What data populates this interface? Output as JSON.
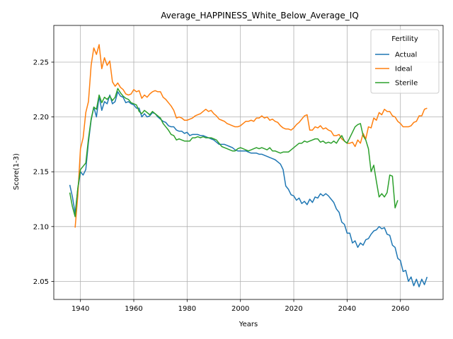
{
  "chart_data": {
    "type": "line",
    "title": "Average_HAPPINESS_White_Below_Average_IQ",
    "xlabel": "Years",
    "ylabel": "Score(1-3)",
    "xlim": [
      1930,
      2076
    ],
    "ylim": [
      2.0335,
      2.2835
    ],
    "xticks": [
      1940,
      1960,
      1980,
      2000,
      2020,
      2040,
      2060
    ],
    "yticks": [
      2.05,
      2.1,
      2.15,
      2.2,
      2.25
    ],
    "ytick_labels": [
      "2.05",
      "2.10",
      "2.15",
      "2.20",
      "2.25"
    ],
    "grid": true,
    "legend": {
      "title": "Fertility",
      "placement": "top-right"
    },
    "series": [
      {
        "name": "Actual",
        "color": "#1f77b4",
        "x": [
          1936,
          1937,
          1938,
          1939,
          1940,
          1941,
          1942,
          1943,
          1944,
          1945,
          1946,
          1947,
          1948,
          1949,
          1950,
          1951,
          1952,
          1953,
          1954,
          1955,
          1956,
          1957,
          1958,
          1959,
          1960,
          1961,
          1962,
          1963,
          1964,
          1965,
          1966,
          1967,
          1968,
          1969,
          1970,
          1971,
          1972,
          1973,
          1974,
          1975,
          1976,
          1977,
          1978,
          1979,
          1980,
          1981,
          1982,
          1983,
          1984,
          1985,
          1986,
          1987,
          1988,
          1989,
          1990,
          1991,
          1992,
          1993,
          1994,
          1995,
          1996,
          1997,
          1998,
          1999,
          2000,
          2001,
          2002,
          2003,
          2004,
          2005,
          2006,
          2007,
          2008,
          2009,
          2010,
          2011,
          2012,
          2013,
          2014,
          2015,
          2016,
          2017,
          2018,
          2019,
          2020,
          2021,
          2022,
          2023,
          2024,
          2025,
          2026,
          2027,
          2028,
          2029,
          2030,
          2031,
          2032,
          2033,
          2034,
          2035,
          2036,
          2037,
          2038,
          2039,
          2040,
          2041,
          2042,
          2043,
          2044,
          2045,
          2046,
          2047,
          2048,
          2049,
          2050,
          2051,
          2052,
          2053,
          2054,
          2055,
          2056,
          2057,
          2058,
          2059,
          2060,
          2061,
          2062,
          2063,
          2064,
          2065,
          2066,
          2067,
          2068,
          2069,
          2070
        ],
        "values": [
          2.138,
          2.127,
          2.112,
          2.134,
          2.15,
          2.147,
          2.152,
          2.177,
          2.197,
          2.209,
          2.2,
          2.219,
          2.206,
          2.214,
          2.212,
          2.22,
          2.212,
          2.214,
          2.223,
          2.219,
          2.218,
          2.213,
          2.214,
          2.212,
          2.211,
          2.208,
          2.208,
          2.2,
          2.203,
          2.2,
          2.201,
          2.204,
          2.203,
          2.2,
          2.198,
          2.196,
          2.195,
          2.192,
          2.191,
          2.191,
          2.188,
          2.187,
          2.187,
          2.185,
          2.186,
          2.183,
          2.184,
          2.184,
          2.184,
          2.183,
          2.183,
          2.182,
          2.181,
          2.18,
          2.179,
          2.177,
          2.175,
          2.175,
          2.175,
          2.174,
          2.173,
          2.172,
          2.17,
          2.169,
          2.169,
          2.169,
          2.169,
          2.168,
          2.167,
          2.167,
          2.167,
          2.166,
          2.166,
          2.165,
          2.164,
          2.163,
          2.162,
          2.161,
          2.159,
          2.157,
          2.152,
          2.137,
          2.134,
          2.129,
          2.128,
          2.124,
          2.126,
          2.121,
          2.123,
          2.12,
          2.125,
          2.122,
          2.127,
          2.126,
          2.13,
          2.128,
          2.13,
          2.128,
          2.125,
          2.122,
          2.116,
          2.113,
          2.104,
          2.102,
          2.094,
          2.094,
          2.085,
          2.087,
          2.081,
          2.085,
          2.083,
          2.088,
          2.089,
          2.093,
          2.096,
          2.097,
          2.1,
          2.098,
          2.099,
          2.093,
          2.092,
          2.083,
          2.081,
          2.071,
          2.069,
          2.059,
          2.06,
          2.05,
          2.054,
          2.046,
          2.052,
          2.045,
          2.052,
          2.047,
          2.054
        ]
      },
      {
        "name": "Ideal",
        "color": "#ff7f0e",
        "x": [
          1938,
          1939,
          1940,
          1941,
          1942,
          1943,
          1944,
          1945,
          1946,
          1947,
          1948,
          1949,
          1950,
          1951,
          1952,
          1953,
          1954,
          1955,
          1956,
          1957,
          1958,
          1959,
          1960,
          1961,
          1962,
          1963,
          1964,
          1965,
          1966,
          1967,
          1968,
          1969,
          1970,
          1971,
          1972,
          1973,
          1974,
          1975,
          1976,
          1977,
          1978,
          1979,
          1980,
          1981,
          1982,
          1983,
          1984,
          1985,
          1986,
          1987,
          1988,
          1989,
          1990,
          1991,
          1992,
          1993,
          1994,
          1995,
          1996,
          1997,
          1998,
          1999,
          2000,
          2001,
          2002,
          2003,
          2004,
          2005,
          2006,
          2007,
          2008,
          2009,
          2010,
          2011,
          2012,
          2013,
          2014,
          2015,
          2016,
          2017,
          2018,
          2019,
          2020,
          2021,
          2022,
          2023,
          2024,
          2025,
          2026,
          2027,
          2028,
          2029,
          2030,
          2031,
          2032,
          2033,
          2034,
          2035,
          2036,
          2037,
          2038,
          2039,
          2040,
          2041,
          2042,
          2043,
          2044,
          2045,
          2046,
          2047,
          2048,
          2049,
          2050,
          2051,
          2052,
          2053,
          2054,
          2055,
          2056,
          2057,
          2058,
          2059,
          2060,
          2061,
          2062,
          2063,
          2064,
          2065,
          2066,
          2067,
          2068,
          2069,
          2070
        ],
        "values": [
          2.099,
          2.128,
          2.171,
          2.181,
          2.204,
          2.214,
          2.247,
          2.263,
          2.257,
          2.266,
          2.244,
          2.254,
          2.247,
          2.251,
          2.232,
          2.228,
          2.231,
          2.227,
          2.225,
          2.221,
          2.22,
          2.221,
          2.225,
          2.223,
          2.224,
          2.217,
          2.22,
          2.218,
          2.221,
          2.223,
          2.224,
          2.223,
          2.223,
          2.218,
          2.216,
          2.213,
          2.21,
          2.206,
          2.199,
          2.2,
          2.199,
          2.197,
          2.197,
          2.198,
          2.199,
          2.201,
          2.202,
          2.203,
          2.205,
          2.207,
          2.205,
          2.206,
          2.203,
          2.201,
          2.198,
          2.197,
          2.196,
          2.194,
          2.193,
          2.192,
          2.191,
          2.191,
          2.192,
          2.194,
          2.196,
          2.196,
          2.197,
          2.196,
          2.199,
          2.199,
          2.201,
          2.199,
          2.2,
          2.197,
          2.198,
          2.196,
          2.195,
          2.192,
          2.19,
          2.189,
          2.189,
          2.188,
          2.19,
          2.193,
          2.195,
          2.198,
          2.201,
          2.202,
          2.188,
          2.188,
          2.191,
          2.19,
          2.192,
          2.189,
          2.19,
          2.188,
          2.187,
          2.183,
          2.183,
          2.184,
          2.18,
          2.178,
          2.176,
          2.176,
          2.177,
          2.173,
          2.179,
          2.176,
          2.185,
          2.18,
          2.191,
          2.19,
          2.199,
          2.197,
          2.204,
          2.202,
          2.207,
          2.205,
          2.205,
          2.201,
          2.2,
          2.196,
          2.194,
          2.191,
          2.191,
          2.191,
          2.192,
          2.195,
          2.196,
          2.201,
          2.201,
          2.207,
          2.208
        ]
      },
      {
        "name": "Sterile",
        "color": "#2ca02c",
        "x": [
          1936,
          1937,
          1938,
          1939,
          1940,
          1941,
          1942,
          1943,
          1944,
          1945,
          1946,
          1947,
          1948,
          1949,
          1950,
          1951,
          1952,
          1953,
          1954,
          1955,
          1956,
          1957,
          1958,
          1959,
          1960,
          1961,
          1962,
          1963,
          1964,
          1965,
          1966,
          1967,
          1968,
          1969,
          1970,
          1971,
          1972,
          1973,
          1974,
          1975,
          1976,
          1977,
          1978,
          1979,
          1980,
          1981,
          1982,
          1983,
          1984,
          1985,
          1986,
          1987,
          1988,
          1989,
          1990,
          1991,
          1992,
          1993,
          1994,
          1995,
          1996,
          1997,
          1998,
          1999,
          2000,
          2001,
          2002,
          2003,
          2004,
          2005,
          2006,
          2007,
          2008,
          2009,
          2010,
          2011,
          2012,
          2013,
          2014,
          2015,
          2016,
          2017,
          2018,
          2019,
          2020,
          2021,
          2022,
          2023,
          2024,
          2025,
          2026,
          2027,
          2028,
          2029,
          2030,
          2031,
          2032,
          2033,
          2034,
          2035,
          2036,
          2037,
          2038,
          2039,
          2040,
          2041,
          2042,
          2043,
          2044,
          2045,
          2046,
          2047,
          2048,
          2049,
          2050,
          2051,
          2052,
          2053,
          2054,
          2055,
          2056,
          2057,
          2058,
          2059
        ],
        "values": [
          2.131,
          2.118,
          2.109,
          2.135,
          2.152,
          2.155,
          2.158,
          2.18,
          2.198,
          2.209,
          2.207,
          2.22,
          2.213,
          2.218,
          2.216,
          2.219,
          2.215,
          2.218,
          2.226,
          2.222,
          2.219,
          2.217,
          2.216,
          2.213,
          2.212,
          2.211,
          2.205,
          2.203,
          2.206,
          2.204,
          2.202,
          2.205,
          2.203,
          2.201,
          2.199,
          2.194,
          2.191,
          2.188,
          2.184,
          2.183,
          2.179,
          2.18,
          2.179,
          2.178,
          2.178,
          2.178,
          2.181,
          2.181,
          2.182,
          2.181,
          2.182,
          2.181,
          2.181,
          2.181,
          2.18,
          2.179,
          2.176,
          2.173,
          2.172,
          2.171,
          2.17,
          2.169,
          2.169,
          2.171,
          2.172,
          2.171,
          2.17,
          2.169,
          2.17,
          2.171,
          2.172,
          2.171,
          2.172,
          2.171,
          2.17,
          2.172,
          2.169,
          2.169,
          2.168,
          2.167,
          2.168,
          2.168,
          2.168,
          2.17,
          2.172,
          2.174,
          2.176,
          2.176,
          2.178,
          2.177,
          2.178,
          2.179,
          2.18,
          2.18,
          2.177,
          2.178,
          2.176,
          2.177,
          2.176,
          2.178,
          2.176,
          2.18,
          2.183,
          2.178,
          2.176,
          2.181,
          2.186,
          2.191,
          2.193,
          2.194,
          2.183,
          2.179,
          2.171,
          2.15,
          2.156,
          2.141,
          2.127,
          2.13,
          2.127,
          2.131,
          2.147,
          2.146,
          2.117,
          2.124
        ]
      }
    ]
  }
}
